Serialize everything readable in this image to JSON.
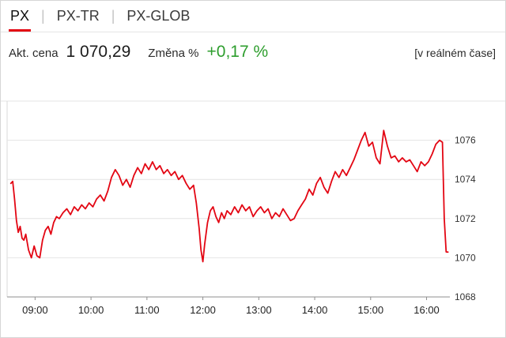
{
  "tabs": [
    {
      "label": "PX",
      "active": true
    },
    {
      "label": "PX-TR",
      "active": false
    },
    {
      "label": "PX-GLOB",
      "active": false
    }
  ],
  "tab_separator": "|",
  "info": {
    "price_label": "Akt. cena",
    "price": "1 070,29",
    "change_label": "Změna %",
    "change": "+0,17 %",
    "realtime": "[v reálném čase]"
  },
  "colors": {
    "accent": "#e30613",
    "positive": "#2e9e2e",
    "line": "#e30613",
    "grid": "#e4e4e4",
    "axis": "#8f8f8f"
  },
  "chart_data": {
    "type": "line",
    "title": "",
    "xlabel": "",
    "ylabel": "",
    "legend": "none",
    "grid": true,
    "ylim": [
      1068,
      1078
    ],
    "y_ticks": [
      1068,
      1070,
      1072,
      1074,
      1076
    ],
    "x_range_minutes": [
      510,
      985
    ],
    "x_ticks": [
      {
        "t": 540,
        "label": "09:00"
      },
      {
        "t": 600,
        "label": "10:00"
      },
      {
        "t": 660,
        "label": "11:00"
      },
      {
        "t": 720,
        "label": "12:00"
      },
      {
        "t": 780,
        "label": "13:00"
      },
      {
        "t": 840,
        "label": "14:00"
      },
      {
        "t": 900,
        "label": "15:00"
      },
      {
        "t": 960,
        "label": "16:00"
      }
    ],
    "series": [
      {
        "name": "PX",
        "color": "#e30613",
        "points": [
          [
            514,
            1073.8
          ],
          [
            516,
            1073.9
          ],
          [
            518,
            1073.0
          ],
          [
            520,
            1071.9
          ],
          [
            522,
            1071.3
          ],
          [
            524,
            1071.6
          ],
          [
            526,
            1071.0
          ],
          [
            528,
            1070.9
          ],
          [
            530,
            1071.2
          ],
          [
            533,
            1070.4
          ],
          [
            536,
            1070.0
          ],
          [
            539,
            1070.6
          ],
          [
            542,
            1070.1
          ],
          [
            545,
            1070.0
          ],
          [
            548,
            1070.9
          ],
          [
            551,
            1071.4
          ],
          [
            554,
            1071.6
          ],
          [
            557,
            1071.2
          ],
          [
            560,
            1071.8
          ],
          [
            563,
            1072.1
          ],
          [
            566,
            1072.0
          ],
          [
            570,
            1072.3
          ],
          [
            574,
            1072.5
          ],
          [
            578,
            1072.2
          ],
          [
            582,
            1072.6
          ],
          [
            586,
            1072.4
          ],
          [
            590,
            1072.7
          ],
          [
            594,
            1072.5
          ],
          [
            598,
            1072.8
          ],
          [
            602,
            1072.6
          ],
          [
            606,
            1073.0
          ],
          [
            610,
            1073.2
          ],
          [
            614,
            1072.9
          ],
          [
            618,
            1073.4
          ],
          [
            622,
            1074.1
          ],
          [
            626,
            1074.5
          ],
          [
            630,
            1074.2
          ],
          [
            634,
            1073.7
          ],
          [
            638,
            1074.0
          ],
          [
            642,
            1073.6
          ],
          [
            646,
            1074.2
          ],
          [
            650,
            1074.6
          ],
          [
            654,
            1074.3
          ],
          [
            658,
            1074.8
          ],
          [
            662,
            1074.5
          ],
          [
            666,
            1074.9
          ],
          [
            670,
            1074.5
          ],
          [
            674,
            1074.7
          ],
          [
            678,
            1074.3
          ],
          [
            682,
            1074.5
          ],
          [
            686,
            1074.2
          ],
          [
            690,
            1074.4
          ],
          [
            694,
            1074.0
          ],
          [
            698,
            1074.2
          ],
          [
            702,
            1073.8
          ],
          [
            706,
            1073.5
          ],
          [
            710,
            1073.7
          ],
          [
            713,
            1072.8
          ],
          [
            716,
            1071.5
          ],
          [
            718,
            1070.4
          ],
          [
            720,
            1069.8
          ],
          [
            722,
            1070.7
          ],
          [
            725,
            1071.8
          ],
          [
            728,
            1072.4
          ],
          [
            731,
            1072.6
          ],
          [
            734,
            1072.1
          ],
          [
            737,
            1071.8
          ],
          [
            740,
            1072.3
          ],
          [
            743,
            1072.0
          ],
          [
            746,
            1072.4
          ],
          [
            750,
            1072.2
          ],
          [
            754,
            1072.6
          ],
          [
            758,
            1072.3
          ],
          [
            762,
            1072.7
          ],
          [
            766,
            1072.4
          ],
          [
            770,
            1072.6
          ],
          [
            774,
            1072.1
          ],
          [
            778,
            1072.4
          ],
          [
            782,
            1072.6
          ],
          [
            786,
            1072.3
          ],
          [
            790,
            1072.5
          ],
          [
            794,
            1072.0
          ],
          [
            798,
            1072.3
          ],
          [
            802,
            1072.1
          ],
          [
            806,
            1072.5
          ],
          [
            810,
            1072.2
          ],
          [
            814,
            1071.9
          ],
          [
            818,
            1072.0
          ],
          [
            822,
            1072.4
          ],
          [
            826,
            1072.7
          ],
          [
            830,
            1073.0
          ],
          [
            834,
            1073.5
          ],
          [
            838,
            1073.2
          ],
          [
            842,
            1073.8
          ],
          [
            846,
            1074.1
          ],
          [
            850,
            1073.6
          ],
          [
            854,
            1073.3
          ],
          [
            858,
            1073.9
          ],
          [
            862,
            1074.4
          ],
          [
            866,
            1074.1
          ],
          [
            870,
            1074.5
          ],
          [
            874,
            1074.2
          ],
          [
            878,
            1074.6
          ],
          [
            882,
            1075.0
          ],
          [
            886,
            1075.5
          ],
          [
            890,
            1076.0
          ],
          [
            894,
            1076.4
          ],
          [
            898,
            1075.7
          ],
          [
            902,
            1075.9
          ],
          [
            906,
            1075.1
          ],
          [
            910,
            1074.8
          ],
          [
            914,
            1076.5
          ],
          [
            918,
            1075.7
          ],
          [
            922,
            1075.1
          ],
          [
            926,
            1075.2
          ],
          [
            930,
            1074.9
          ],
          [
            934,
            1075.1
          ],
          [
            938,
            1074.9
          ],
          [
            942,
            1075.0
          ],
          [
            946,
            1074.7
          ],
          [
            950,
            1074.4
          ],
          [
            954,
            1074.9
          ],
          [
            958,
            1074.7
          ],
          [
            962,
            1074.9
          ],
          [
            966,
            1075.3
          ],
          [
            970,
            1075.8
          ],
          [
            974,
            1076.0
          ],
          [
            977,
            1075.9
          ],
          [
            979,
            1072.0
          ],
          [
            981,
            1070.3
          ],
          [
            983,
            1070.29
          ]
        ]
      }
    ]
  }
}
